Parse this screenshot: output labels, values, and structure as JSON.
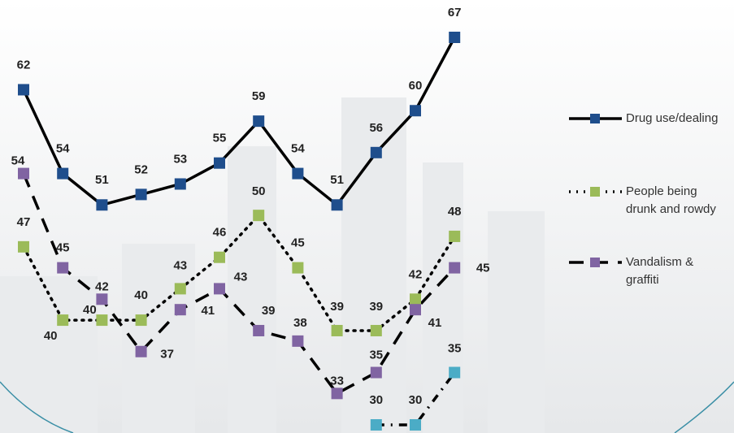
{
  "chart_data": {
    "type": "line",
    "categories": [
      null,
      null,
      null,
      null,
      null,
      null,
      null,
      null,
      null,
      null,
      null,
      null
    ],
    "ylim": [
      30,
      67
    ],
    "legend": "right",
    "series": [
      {
        "name": "Drug use/dealing",
        "color": "#1f4e8c",
        "values": [
          62,
          54,
          51,
          52,
          53,
          55,
          59,
          54,
          51,
          56,
          60,
          67
        ]
      },
      {
        "name": "People being drunk and rowdy",
        "color": "#9bbb59",
        "values": [
          47,
          40,
          40,
          40,
          43,
          46,
          50,
          45,
          39,
          39,
          42,
          48
        ]
      },
      {
        "name": "Vandalism & graffiti",
        "color": "#8064a2",
        "values": [
          54,
          45,
          42,
          37,
          41,
          43,
          39,
          38,
          33,
          35,
          41,
          45
        ]
      },
      {
        "color": "#4bacc6",
        "values": [
          null,
          null,
          null,
          null,
          null,
          null,
          null,
          null,
          null,
          30,
          30,
          35
        ]
      }
    ]
  }
}
